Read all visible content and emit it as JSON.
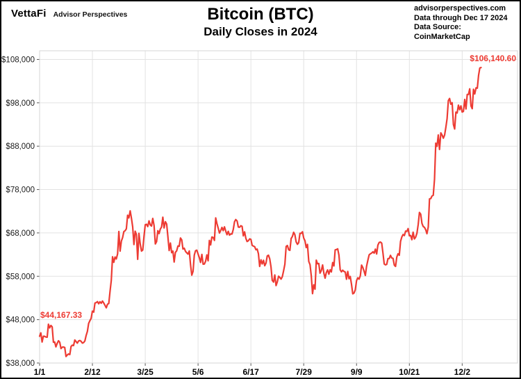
{
  "header": {
    "logo": {
      "brand": "VettaFi",
      "tagline": "Advisor Perspectives"
    },
    "title": "Bitcoin (BTC)",
    "subtitle": "Daily Closes in 2024",
    "source": {
      "line1": "advisorperspectives.com",
      "line2": "Data through Dec 17 2024",
      "line3": "Data Source: CoinMarketCap"
    }
  },
  "annotations": {
    "first_value": "$44,167.33",
    "last_value": "$106,140.60"
  },
  "colors": {
    "line": "#ED3B33",
    "annotation": "#ED3B33",
    "grid": "#E2E2E2",
    "spine": "#D6D6D6",
    "tick": "#555555",
    "axis_text": "#1A1A1A"
  },
  "chart_data": {
    "type": "line",
    "title": "Bitcoin (BTC)",
    "subtitle": "Daily Closes in 2024",
    "series_name": "BTC daily close (USD)",
    "x_start_date": "2024-01-01",
    "x_end_date": "2024-12-17",
    "frequency": "daily",
    "grid": true,
    "legend": "none",
    "ylim": [
      38000,
      110000
    ],
    "y_ticks": [
      38000,
      48000,
      58000,
      68000,
      78000,
      88000,
      98000,
      108000
    ],
    "x_domain_days": [
      0,
      380
    ],
    "x_tick_days": [
      0,
      42,
      84,
      126,
      168,
      210,
      252,
      294,
      336
    ],
    "x_tick_labels": [
      "1/1",
      "2/12",
      "3/25",
      "5/6",
      "6/17",
      "7/29",
      "9/9",
      "10/21",
      "12/2"
    ],
    "first_close": 44167.33,
    "last_close": 106140.6,
    "values": [
      44167,
      44958,
      42845,
      44172,
      44163,
      43989,
      43943,
      46951,
      46106,
      46654,
      46337,
      42773,
      42843,
      41715,
      42511,
      43138,
      42776,
      41327,
      41659,
      41696,
      41580,
      39507,
      39845,
      40077,
      39961,
      41823,
      42120,
      42031,
      43300,
      42941,
      42580,
      43082,
      43194,
      43011,
      42582,
      42709,
      43098,
      44349,
      45288,
      47132,
      47751,
      48294,
      49958,
      49742,
      51826,
      51938,
      52161,
      51663,
      52122,
      51779,
      52284,
      51839,
      51304,
      50731,
      51571,
      51733,
      54522,
      57037,
      62505,
      61198,
      62440,
      61987,
      63169,
      68330,
      63801,
      66106,
      66925,
      68300,
      68498,
      68955,
      72078,
      71452,
      73083,
      71396,
      69403,
      65315,
      68393,
      67610,
      61912,
      67913,
      65501,
      63798,
      64062,
      67234,
      69880,
      69988,
      69469,
      70780,
      69850,
      69582,
      71333,
      69702,
      65446,
      65980,
      68508,
      67837,
      68896,
      69360,
      71631,
      69140,
      70587,
      70060,
      67116,
      63924,
      65661,
      63426,
      63811,
      61277,
      63512,
      63843,
      64994,
      64926,
      66837,
      66407,
      64276,
      64481,
      63755,
      63419,
      63113,
      63841,
      60637,
      58254,
      59123,
      62882,
      63892,
      64012,
      63163,
      62312,
      61187,
      63049,
      60792,
      60826,
      61483,
      62940,
      61577,
      66267,
      65231,
      67051,
      66940,
      66278,
      71446,
      70154,
      69122,
      67969,
      68549,
      69265,
      68518,
      69394,
      68380,
      67578,
      68364,
      67491,
      67766,
      67745,
      68804,
      70567,
      71082,
      70757,
      69342,
      69305,
      69648,
      69510,
      67314,
      68243,
      66770,
      66011,
      66191,
      66631,
      66490,
      65140,
      64960,
      64829,
      64117,
      64260,
      63210,
      60277,
      61804,
      60857,
      61690,
      60427,
      61025,
      62678,
      62851,
      62029,
      60174,
      57049,
      56662,
      58303,
      55849,
      56705,
      58009,
      57742,
      57344,
      57899,
      59231,
      60787,
      64870,
      65097,
      64119,
      63974,
      66710,
      67164,
      68154,
      67584,
      65928,
      65372,
      65777,
      67912,
      67896,
      68255,
      66819,
      66201,
      64619,
      65357,
      61415,
      60680,
      58116,
      53991,
      56040,
      55030,
      61710,
      60880,
      60945,
      58719,
      59354,
      60609,
      58737,
      57560,
      58894,
      59478,
      58483,
      59493,
      59014,
      61175,
      60382,
      64094,
      64178,
      64333,
      62880,
      59504,
      59027,
      59388,
      59119,
      58970,
      57325,
      59112,
      57431,
      57971,
      56160,
      53948,
      54139,
      54841,
      57019,
      57648,
      57343,
      58127,
      60571,
      60005,
      59182,
      58192,
      60308,
      61649,
      62940,
      63193,
      63348,
      63648,
      63329,
      64262,
      63150,
      65173,
      65790,
      65887,
      65635,
      63329,
      60837,
      60632,
      60759,
      62067,
      62089,
      62818,
      62236,
      62131,
      60582,
      60274,
      62445,
      63193,
      62851,
      66046,
      67041,
      67612,
      67399,
      68418,
      68362,
      69001,
      67348,
      67411,
      66432,
      68161,
      66600,
      67014,
      67929,
      69910,
      72720,
      72339,
      70215,
      69482,
      69289,
      68741,
      67811,
      69359,
      75857,
      75904,
      76510,
      76678,
      80370,
      88701,
      87955,
      90584,
      87250,
      91066,
      90558,
      89845,
      90542,
      92310,
      94339,
      98504,
      98997,
      97672,
      98014,
      93010,
      91965,
      95863,
      95652,
      97461,
      96405,
      97279,
      95865,
      96002,
      98768,
      96594,
      99920,
      99923,
      101236,
      97276,
      96648,
      101126,
      100043,
      101459,
      101372,
      104298,
      106029,
      106140.6
    ]
  }
}
